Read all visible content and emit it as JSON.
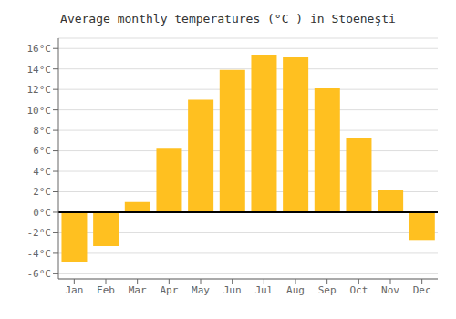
{
  "chart_data": {
    "type": "bar",
    "title": "Average monthly temperatures (°C ) in Stoeneşti",
    "categories": [
      "Jan",
      "Feb",
      "Mar",
      "Apr",
      "May",
      "Jun",
      "Jul",
      "Aug",
      "Sep",
      "Oct",
      "Nov",
      "Dec"
    ],
    "values": [
      -4.8,
      -3.3,
      1.0,
      6.3,
      11.0,
      13.9,
      15.4,
      15.2,
      12.1,
      7.3,
      2.2,
      -2.7
    ],
    "color": "#FFC020",
    "ylim": [
      -6.5,
      17.0
    ],
    "yticks": [
      {
        "value": -6,
        "label": "-6°C"
      },
      {
        "value": -4,
        "label": "-4°C"
      },
      {
        "value": -2,
        "label": "-2°C"
      },
      {
        "value": 0,
        "label": "0°C"
      },
      {
        "value": 2,
        "label": "2°C"
      },
      {
        "value": 4,
        "label": "4°C"
      },
      {
        "value": 6,
        "label": "6°C"
      },
      {
        "value": 8,
        "label": "8°C"
      },
      {
        "value": 10,
        "label": "10°C"
      },
      {
        "value": 12,
        "label": "12°C"
      },
      {
        "value": 14,
        "label": "14°C"
      },
      {
        "value": 16,
        "label": "16°C"
      }
    ],
    "grid": true
  }
}
